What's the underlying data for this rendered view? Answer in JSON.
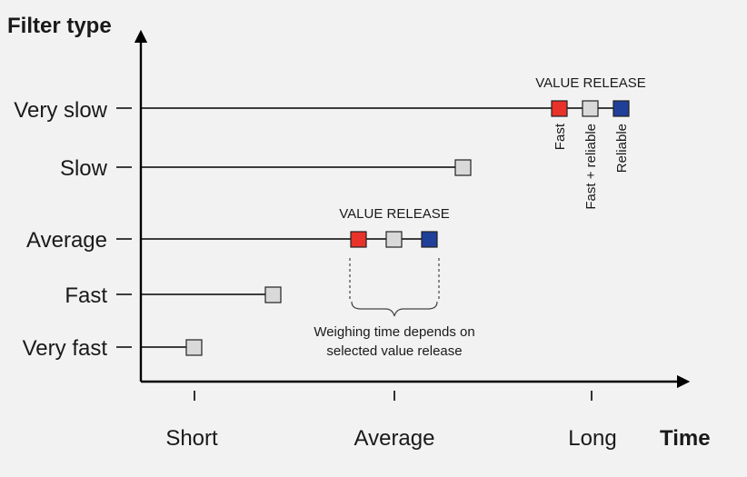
{
  "axes": {
    "y_title": "Filter type",
    "x_title": "Time"
  },
  "filter_types": [
    {
      "label": "Very slow"
    },
    {
      "label": "Slow"
    },
    {
      "label": "Average"
    },
    {
      "label": "Fast"
    },
    {
      "label": "Very fast"
    }
  ],
  "time_labels": [
    {
      "label": "Short"
    },
    {
      "label": "Average"
    },
    {
      "label": "Long"
    }
  ],
  "value_release_title": "VALUE RELEASE",
  "release_options": [
    {
      "label": "Fast",
      "color": "#e8322a"
    },
    {
      "label": "Fast + reliable",
      "color": "#d9d9d9"
    },
    {
      "label": "Reliable",
      "color": "#1f3f99"
    }
  ],
  "note": {
    "line1": "Weighing time depends on",
    "line2": "selected value release"
  },
  "colors": {
    "neutral_box": "#d9d9d9",
    "background": "#f2f2f2"
  }
}
